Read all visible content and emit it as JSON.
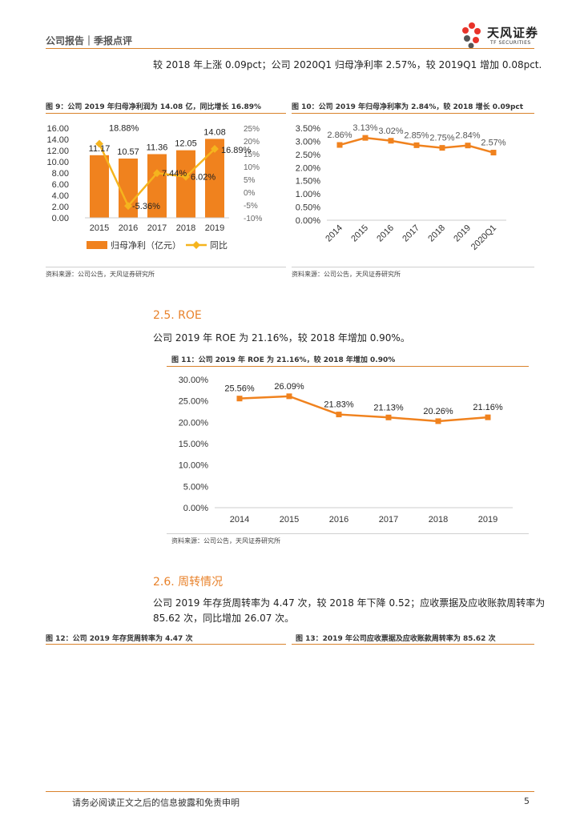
{
  "header": {
    "title": "公司报告｜季报点评",
    "logo_cn": "天风证券",
    "logo_en": "TF SECURITIES"
  },
  "intro_text": "较 2018 年上涨 0.09pct；公司 2020Q1 归母净利率 2.57%，较 2019Q1 增加 0.08pct.",
  "fig9": {
    "caption": "图 9：公司 2019 年归母净利润为 14.08 亿，同比增长 16.89%",
    "source": "资料来源：公司公告，天风证券研究所"
  },
  "fig10": {
    "caption": "图 10：公司 2019 年归母净利率为 2.84%，较 2018 增长 0.09pct",
    "source": "资料来源：公司公告，天风证券研究所"
  },
  "section_roe": {
    "title": "2.5. ROE",
    "text": "公司 2019 年 ROE 为 21.16%，较 2018 年增加 0.90%。"
  },
  "fig11": {
    "caption": "图 11：公司 2019 年 ROE 为 21.16%，较 2018 年增加 0.90%",
    "source": "资料来源：公司公告，天风证券研究所"
  },
  "section_turnover": {
    "title": "2.6. 周转情况",
    "text_line1": "公司 2019 年存货周转率为 4.47 次，较 2018 年下降 0.52；应收票据及应收账款周转率为",
    "text_line2": "85.62 次，同比增加 26.07 次。"
  },
  "fig12": {
    "caption": "图 12：公司 2019 年存货周转率为 4.47 次"
  },
  "fig13": {
    "caption": "图 13：2019 年公司应收票据及应收账款周转率为 85.62 次"
  },
  "footer": {
    "text": "请务必阅读正文之后的信息披露和免责申明",
    "page": "5"
  },
  "chart_data": [
    {
      "type": "bar",
      "categories": [
        "2015",
        "2016",
        "2017",
        "2018",
        "2019"
      ],
      "series": [
        {
          "name": "归母净利（亿元）",
          "type": "bar",
          "axis": "left",
          "color": "#f0821e",
          "values": [
            11.17,
            10.57,
            11.36,
            12.05,
            14.08
          ],
          "labels": [
            "11.17",
            "10.57",
            "11.36",
            "12.05",
            "14.08"
          ]
        },
        {
          "name": "同比",
          "type": "line",
          "axis": "right",
          "color": "#f5b41e",
          "values": [
            18.88,
            -5.36,
            7.44,
            6.02,
            16.89
          ],
          "labels": [
            "18.88%",
            "-5.36%",
            "7.44%",
            "6.02%",
            "16.89%"
          ]
        }
      ],
      "ylim": [
        0,
        16
      ],
      "yticks": [
        "16.00",
        "14.00",
        "12.00",
        "10.00",
        "8.00",
        "6.00",
        "4.00",
        "2.00",
        "0.00"
      ],
      "y2lim": [
        -10,
        25
      ],
      "y2ticks": [
        "25%",
        "20%",
        "15%",
        "10%",
        "5%",
        "0%",
        "-5%",
        "-10%"
      ],
      "legend": "bottom"
    },
    {
      "type": "line",
      "categories": [
        "2014",
        "2015",
        "2016",
        "2017",
        "2018",
        "2019",
        "2020Q1"
      ],
      "series": [
        {
          "name": "归母净利率",
          "color": "#f0821e",
          "values": [
            2.86,
            3.13,
            3.02,
            2.85,
            2.75,
            2.84,
            2.57
          ],
          "labels": [
            "2.86%",
            "3.13%",
            "3.02%",
            "2.85%",
            "2.75%",
            "2.84%",
            "2.57%"
          ]
        }
      ],
      "ylim": [
        0,
        3.5
      ],
      "yticks": [
        "3.50%",
        "3.00%",
        "2.50%",
        "2.00%",
        "1.50%",
        "1.00%",
        "0.50%",
        "0.00%"
      ]
    },
    {
      "type": "line",
      "categories": [
        "2014",
        "2015",
        "2016",
        "2017",
        "2018",
        "2019"
      ],
      "series": [
        {
          "name": "ROE",
          "color": "#f0821e",
          "values": [
            25.56,
            26.09,
            21.83,
            21.13,
            20.26,
            21.16
          ],
          "labels": [
            "25.56%",
            "26.09%",
            "21.83%",
            "21.13%",
            "20.26%",
            "21.16%"
          ]
        }
      ],
      "ylim": [
        0,
        30
      ],
      "yticks": [
        "30.00%",
        "25.00%",
        "20.00%",
        "15.00%",
        "10.00%",
        "5.00%",
        "0.00%"
      ]
    }
  ]
}
